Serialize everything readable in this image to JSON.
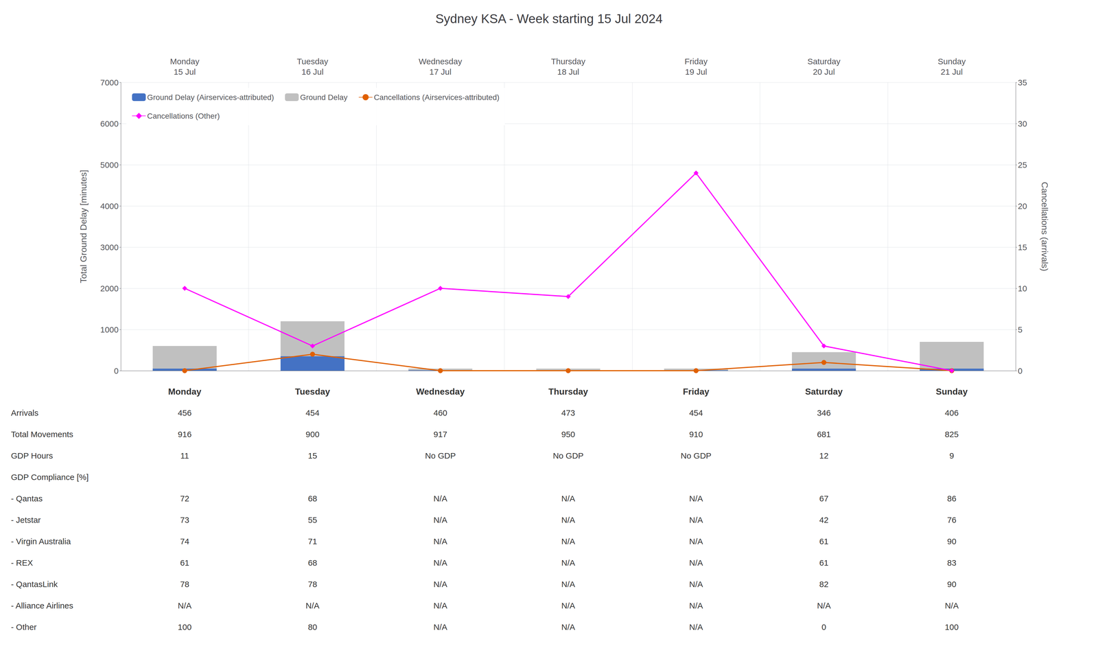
{
  "chart_data": {
    "type": "bar",
    "title": "Sydney KSA - Week starting 15 Jul 2024",
    "categories": [
      "Monday\n15 Jul",
      "Tuesday\n16 Jul",
      "Wednesday\n17 Jul",
      "Thursday\n18 Jul",
      "Friday\n19 Jul",
      "Saturday\n20 Jul",
      "Sunday\n21 Jul"
    ],
    "series": [
      {
        "name": "Ground Delay (Airservices-attributed)",
        "type": "bar",
        "color": "#4472c4",
        "values": [
          50,
          350,
          10,
          10,
          10,
          50,
          50
        ]
      },
      {
        "name": "Ground Delay",
        "type": "bar",
        "color": "#c0c0c0",
        "values": [
          600,
          1200,
          50,
          50,
          50,
          450,
          700
        ]
      },
      {
        "name": "Cancellations (Airservices-attributed)",
        "type": "line",
        "axis": "y2",
        "color": "#e06000",
        "marker": "circle",
        "values": [
          0,
          2,
          0,
          0,
          0,
          1,
          0
        ]
      },
      {
        "name": "Cancellations (Other)",
        "type": "line",
        "axis": "y2",
        "color": "#ff00ff",
        "marker": "diamond",
        "values": [
          10,
          3,
          10,
          9,
          24,
          3,
          0
        ]
      }
    ],
    "ylabel": "Total Ground Delay [minutes]",
    "y2label": "Cancellations (arrivals)",
    "ylim": [
      0,
      7000
    ],
    "yticks": [
      0,
      1000,
      2000,
      3000,
      4000,
      5000,
      6000,
      7000
    ],
    "y2lim": [
      0,
      35
    ],
    "y2ticks": [
      0,
      5,
      10,
      15,
      20,
      25,
      30,
      35
    ],
    "grid": true,
    "legend": "upper left",
    "table": {
      "header": [
        null,
        "Monday",
        "Tuesday",
        "Wednesday",
        "Thursday",
        "Friday",
        "Saturday",
        "Sunday"
      ],
      "rows": [
        [
          "Arrivals",
          "456",
          "454",
          "460",
          "473",
          "454",
          "346",
          "406"
        ],
        [
          "Total Movements",
          "916",
          "900",
          "917",
          "950",
          "910",
          "681",
          "825"
        ],
        [
          "GDP Hours",
          "11",
          "15",
          "No GDP",
          "No GDP",
          "No GDP",
          "12",
          "9"
        ],
        [
          "GDP Compliance [%]",
          null,
          null,
          null,
          null,
          null,
          null,
          null
        ],
        [
          "- Qantas",
          "72",
          "68",
          "N/A",
          "N/A",
          "N/A",
          "67",
          "86"
        ],
        [
          "- Jetstar",
          "73",
          "55",
          "N/A",
          "N/A",
          "N/A",
          "42",
          "76"
        ],
        [
          "- Virgin Australia",
          "74",
          "71",
          "N/A",
          "N/A",
          "N/A",
          "61",
          "90"
        ],
        [
          "- REX",
          "61",
          "68",
          "N/A",
          "N/A",
          "N/A",
          "61",
          "83"
        ],
        [
          "- QantasLink",
          "78",
          "78",
          "N/A",
          "N/A",
          "N/A",
          "82",
          "90"
        ],
        [
          "- Alliance Airlines",
          "N/A",
          "N/A",
          "N/A",
          "N/A",
          "N/A",
          "N/A",
          "N/A"
        ],
        [
          "- Other",
          "100",
          "80",
          "N/A",
          "N/A",
          "N/A",
          "0",
          "100"
        ]
      ]
    }
  }
}
